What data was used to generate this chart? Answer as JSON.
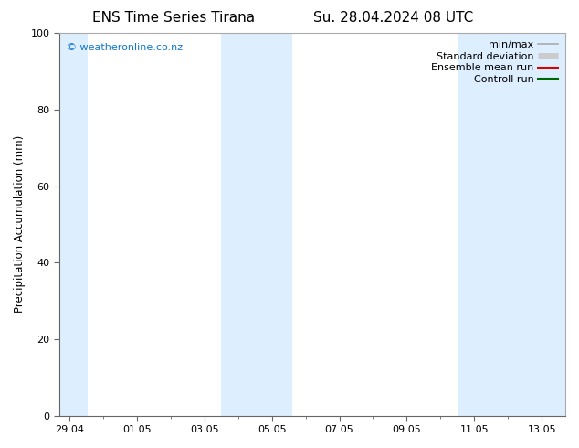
{
  "title_left": "ENS Time Series Tirana",
  "title_right": "Su. 28.04.2024 08 UTC",
  "ylabel": "Precipitation Accumulation (mm)",
  "ylim": [
    0,
    100
  ],
  "yticks": [
    0,
    20,
    40,
    60,
    80,
    100
  ],
  "xtick_labels": [
    "29.04",
    "01.05",
    "03.05",
    "05.05",
    "07.05",
    "09.05",
    "11.05",
    "13.05"
  ],
  "bg_color": "#ffffff",
  "plot_bg_color": "#ffffff",
  "shaded_band_color": "#ddeeff",
  "watermark_text": "© weatheronline.co.nz",
  "watermark_color": "#1177cc",
  "legend_items": [
    {
      "label": "min/max",
      "color": "#aaaaaa",
      "lw": 1.2,
      "linestyle": "-"
    },
    {
      "label": "Standard deviation",
      "color": "#cccccc",
      "lw": 5,
      "linestyle": "-"
    },
    {
      "label": "Ensemble mean run",
      "color": "#dd0000",
      "lw": 1.5,
      "linestyle": "-"
    },
    {
      "label": "Controll run",
      "color": "#006600",
      "lw": 1.5,
      "linestyle": "-"
    }
  ],
  "title_fontsize": 11,
  "tick_fontsize": 8,
  "legend_fontsize": 8,
  "ylabel_fontsize": 8.5,
  "watermark_fontsize": 8
}
